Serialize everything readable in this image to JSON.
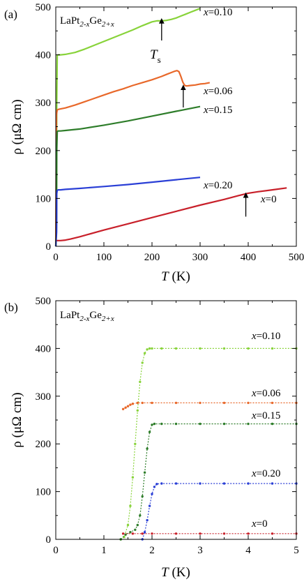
{
  "figure": {
    "panel_a_label": "(a)",
    "panel_b_label": "(b)"
  },
  "chart_data": [
    {
      "type": "line",
      "panel": "(a)",
      "title": "LaPt2-xGe2+x",
      "compound": {
        "base": "LaPt",
        "sub1": "2-x",
        "mid": "Ge",
        "sub2": "2+x"
      },
      "xlabel": {
        "italic": "T",
        "rest": " (K)"
      },
      "ylabel": "ρ (μΩ cm)",
      "xlim": [
        0,
        500
      ],
      "ylim": [
        0,
        500
      ],
      "xticks": [
        0,
        100,
        200,
        300,
        400,
        500
      ],
      "yticks": [
        0,
        100,
        200,
        300,
        400,
        500
      ],
      "grid": false,
      "annotation": {
        "text": "T",
        "sub": "s"
      },
      "series": [
        {
          "name": "x=0.10",
          "prefix": "x",
          "value": "=0.10",
          "color": "#88d33a",
          "x": [
            0,
            1.5,
            2,
            3,
            5,
            10,
            20,
            40,
            60,
            80,
            100,
            120,
            140,
            160,
            180,
            200,
            210,
            220,
            230,
            240,
            250,
            260,
            270,
            280,
            290,
            300
          ],
          "y": [
            0,
            60,
            300,
            399,
            400,
            400,
            401,
            405,
            412,
            420,
            428,
            436,
            444,
            452,
            461,
            469,
            471,
            471,
            472,
            474,
            477,
            481,
            485,
            489,
            493,
            497
          ]
        },
        {
          "name": "x=0.06",
          "prefix": "x",
          "value": "=0.06",
          "color": "#e8682a",
          "x": [
            0,
            1.5,
            3,
            5,
            10,
            20,
            40,
            60,
            80,
            100,
            120,
            140,
            160,
            180,
            200,
            220,
            230,
            240,
            248,
            252,
            256,
            260,
            264,
            268,
            272,
            280,
            290,
            300,
            310,
            320
          ],
          "y": [
            0,
            275,
            285,
            286,
            287,
            289,
            295,
            302,
            309,
            316,
            323,
            329,
            336,
            342,
            348,
            355,
            359,
            363,
            366,
            367,
            365,
            355,
            343,
            336,
            335,
            336,
            337,
            339,
            340,
            342
          ]
        },
        {
          "name": "x=0.15",
          "prefix": "x",
          "value": "=0.15",
          "color": "#2e7d2a",
          "x": [
            0,
            1.5,
            2,
            3,
            5,
            10,
            20,
            50,
            100,
            150,
            200,
            250,
            300
          ],
          "y": [
            0,
            40,
            200,
            240,
            241,
            241,
            242,
            245,
            253,
            262,
            272,
            282,
            292
          ]
        },
        {
          "name": "x=0.20",
          "prefix": "x",
          "value": "=0.20",
          "color": "#2a3fd6",
          "x": [
            0,
            1.7,
            2,
            3,
            5,
            10,
            20,
            50,
            100,
            150,
            200,
            250,
            300
          ],
          "y": [
            0,
            30,
            110,
            117,
            118,
            118,
            119,
            121,
            125,
            129,
            134,
            139,
            144
          ]
        },
        {
          "name": "x=0",
          "prefix": "x",
          "value": "=0",
          "color": "#c8202a",
          "x": [
            2,
            5,
            10,
            20,
            30,
            50,
            100,
            150,
            200,
            250,
            300,
            350,
            380,
            400,
            420,
            450,
            480
          ],
          "y": [
            12,
            12,
            12,
            13,
            15,
            20,
            34,
            47,
            60,
            73,
            86,
            98,
            106,
            111,
            114,
            118,
            122
          ]
        }
      ],
      "arrows": [
        {
          "x": 220,
          "y_from": 430,
          "y_to": 471
        },
        {
          "x": 265,
          "y_from": 290,
          "y_to": 332
        },
        {
          "x": 395,
          "y_from": 62,
          "y_to": 107
        }
      ]
    },
    {
      "type": "scatter",
      "panel": "(b)",
      "title": "LaPt2-xGe2+x",
      "compound": {
        "base": "LaPt",
        "sub1": "2-x",
        "mid": "Ge",
        "sub2": "2+x"
      },
      "xlabel": {
        "italic": "T",
        "rest": " (K)"
      },
      "ylabel": "ρ (μΩ cm)",
      "xlim": [
        0,
        5
      ],
      "ylim": [
        0,
        500
      ],
      "xticks": [
        0,
        1,
        2,
        3,
        4,
        5
      ],
      "yticks": [
        0,
        100,
        200,
        300,
        400,
        500
      ],
      "grid": false,
      "series": [
        {
          "name": "x=0.10",
          "prefix": "x",
          "value": "=0.10",
          "color": "#88d33a",
          "x": [
            1.35,
            1.42,
            1.5,
            1.55,
            1.6,
            1.65,
            1.7,
            1.75,
            1.8,
            1.85,
            1.9,
            1.95,
            2.0,
            2.2,
            2.5,
            3.0,
            3.5,
            4.0,
            4.5,
            5.0
          ],
          "y": [
            0,
            5,
            30,
            70,
            130,
            200,
            270,
            330,
            370,
            390,
            398,
            400,
            400,
            400,
            400,
            400,
            400,
            400,
            400,
            400
          ]
        },
        {
          "name": "x=0.06",
          "prefix": "x",
          "value": "=0.06",
          "color": "#e8682a",
          "x": [
            1.4,
            1.45,
            1.5,
            1.55,
            1.6,
            1.7,
            1.8,
            2.0,
            2.5,
            3.0,
            3.5,
            4.0,
            4.5,
            5.0
          ],
          "y": [
            273,
            276,
            279,
            282,
            284,
            286,
            286,
            286,
            286,
            286,
            286,
            286,
            286,
            286
          ]
        },
        {
          "name": "x=0.15",
          "prefix": "x",
          "value": "=0.15",
          "color": "#2e7d2a",
          "x": [
            1.35,
            1.45,
            1.55,
            1.65,
            1.7,
            1.75,
            1.8,
            1.85,
            1.9,
            1.95,
            2.0,
            2.05,
            2.2,
            2.5,
            3.0,
            3.5,
            4.0,
            4.5,
            5.0
          ],
          "y": [
            0,
            10,
            15,
            20,
            30,
            50,
            90,
            140,
            190,
            225,
            240,
            242,
            242,
            242,
            242,
            242,
            242,
            242,
            242
          ]
        },
        {
          "name": "x=0.20",
          "prefix": "x",
          "value": "=0.20",
          "color": "#2a3fd6",
          "x": [
            1.8,
            1.85,
            1.9,
            1.95,
            2.0,
            2.05,
            2.1,
            2.2,
            2.5,
            3.0,
            3.5,
            4.0,
            4.5,
            5.0
          ],
          "y": [
            0,
            15,
            40,
            70,
            95,
            110,
            116,
            117,
            117,
            117,
            117,
            117,
            117,
            117
          ]
        },
        {
          "name": "x=0",
          "prefix": "x",
          "value": "=0",
          "color": "#c8202a",
          "x": [
            1.4,
            1.6,
            1.8,
            2.0,
            2.5,
            3.0,
            3.5,
            4.0,
            4.5,
            5.0
          ],
          "y": [
            12,
            12,
            12,
            12,
            12,
            12,
            12,
            12,
            12,
            12
          ]
        }
      ]
    }
  ]
}
